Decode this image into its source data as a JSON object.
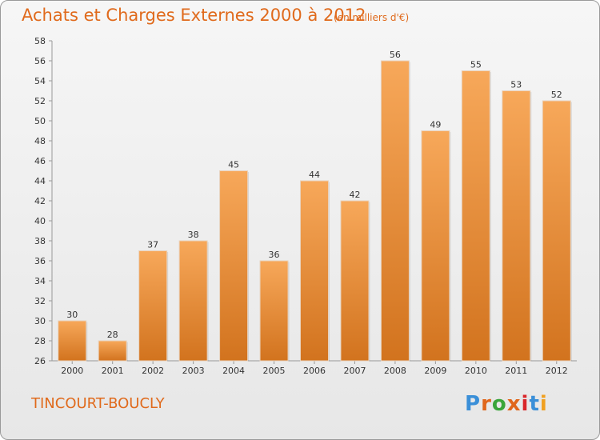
{
  "header": {
    "title": "Achats et Charges Externes 2000 à 2012",
    "subtitle": "(en milliers d'€)"
  },
  "footer": {
    "place": "TINCOURT-BOUCLY",
    "logo_text": "Proxiti"
  },
  "colors": {
    "accent": "#e06a1c",
    "bar_top": "#f7a85a",
    "bar_bottom": "#d2731e",
    "logo": [
      "#3a8fd8",
      "#e0661b",
      "#3aa53a",
      "#e0661b",
      "#d9262a",
      "#3a8fd8",
      "#f0a020"
    ]
  },
  "chart_data": {
    "type": "bar",
    "title": "Achats et Charges Externes 2000 à 2012",
    "subtitle": "(en milliers d'€)",
    "xlabel": "",
    "ylabel": "",
    "categories": [
      "2000",
      "2001",
      "2002",
      "2003",
      "2004",
      "2005",
      "2006",
      "2007",
      "2008",
      "2009",
      "2010",
      "2011",
      "2012"
    ],
    "values": [
      30,
      28,
      37,
      38,
      45,
      36,
      44,
      42,
      56,
      49,
      55,
      53,
      52
    ],
    "ylim": [
      26,
      58
    ],
    "yticks": [
      26,
      28,
      30,
      32,
      34,
      36,
      38,
      40,
      42,
      44,
      46,
      48,
      50,
      52,
      54,
      56,
      58
    ],
    "grid": false,
    "data_labels": true
  }
}
